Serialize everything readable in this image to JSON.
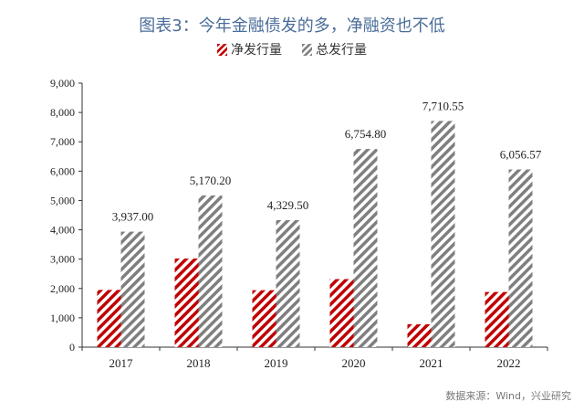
{
  "title": "图表3：今年金融债发的多，净融资也不低",
  "source": "数据来源：Wind，兴业研究",
  "colors": {
    "net": "#c00000",
    "total": "#7f7f7f",
    "axis": "#333333",
    "text": "#222222"
  },
  "chart_data": {
    "type": "bar",
    "categories": [
      "2017",
      "2018",
      "2019",
      "2020",
      "2021",
      "2022"
    ],
    "series": [
      {
        "name": "净发行量",
        "values": [
          1950,
          3020,
          1940,
          2320,
          780,
          1880
        ],
        "pattern": "red-diagonal-hatch"
      },
      {
        "name": "总发行量",
        "values": [
          3937.0,
          5170.2,
          4329.5,
          6754.8,
          7710.55,
          6056.57
        ],
        "labels": [
          "3,937.00",
          "5,170.20",
          "4,329.50",
          "6,754.80",
          "7,710.55",
          "6,056.57"
        ],
        "pattern": "gray-diagonal-hatch"
      }
    ],
    "ylim": [
      0,
      9000
    ],
    "yticks": [
      "0",
      "1,000",
      "2,000",
      "3,000",
      "4,000",
      "5,000",
      "6,000",
      "7,000",
      "8,000",
      "9,000"
    ],
    "xlabel": "",
    "ylabel": "",
    "legend_position": "top-center",
    "grid": false
  }
}
